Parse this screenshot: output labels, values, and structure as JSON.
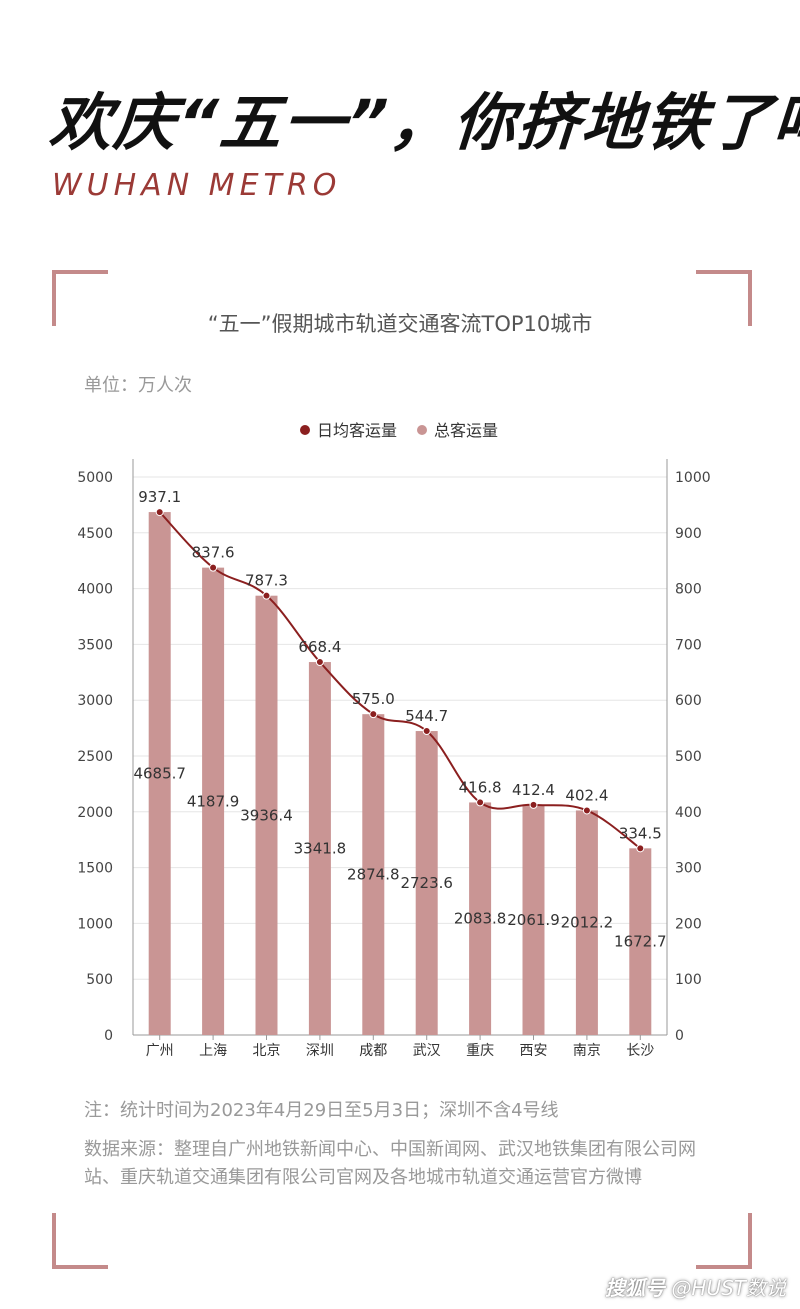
{
  "header": {
    "title": "欢庆“五一”，你挤地铁了吗？",
    "subtitle": "WUHAN METRO"
  },
  "chart_title": "“五一”假期城市轨道交通客流TOP10城市",
  "unit_label": "单位：万人次",
  "note": "注：统计时间为2023年4月29日至5月3日；深圳不含4号线",
  "source": "数据来源：整理自广州地铁新闻中心、中国新闻网、武汉地铁集团有限公司网站、重庆轨道交通集团有限公司官网及各地城市轨道交通运营官方微博",
  "watermark": {
    "platform": "搜狐号",
    "account": "@HUST数说"
  },
  "colors": {
    "bar": "#c99594",
    "line": "#8b1f1f",
    "accent": "#9b3a36",
    "corner": "#c48a8a"
  },
  "chart_data": {
    "type": "bar",
    "categories": [
      "广州",
      "上海",
      "北京",
      "深圳",
      "成都",
      "武汉",
      "重庆",
      "西安",
      "南京",
      "长沙"
    ],
    "series": [
      {
        "name": "总客运量",
        "type": "bar",
        "axis": "left",
        "values": [
          4685.7,
          4187.9,
          3936.4,
          3341.8,
          2874.8,
          2723.6,
          2083.8,
          2061.9,
          2012.2,
          1672.7
        ]
      },
      {
        "name": "日均客运量",
        "type": "line",
        "axis": "right",
        "values": [
          937.1,
          837.6,
          787.3,
          668.4,
          575.0,
          544.7,
          416.8,
          412.4,
          402.4,
          334.5
        ]
      }
    ],
    "value_labels": {
      "bar": [
        "4685.7",
        "4187.9",
        "3936.4",
        "3341.8",
        "2874.8",
        "2723.6",
        "2083.8",
        "2061.9",
        "2012.2",
        "1672.7"
      ],
      "line": [
        "937.1",
        "837.6",
        "787.3",
        "668.4",
        "575.0",
        "544.7",
        "416.8",
        "412.4",
        "402.4",
        "334.5"
      ]
    },
    "y_left": {
      "min": 0,
      "max": 5000,
      "ticks": [
        "0",
        "500",
        "1000",
        "1500",
        "2000",
        "2500",
        "3000",
        "3500",
        "4000",
        "4500",
        "5000"
      ]
    },
    "y_right": {
      "min": 0,
      "max": 1000,
      "ticks": [
        "0",
        "100",
        "200",
        "300",
        "400",
        "500",
        "600",
        "700",
        "800",
        "900",
        "1000"
      ]
    },
    "legend": {
      "position": "top-center",
      "items": [
        "日均客运量",
        "总客运量"
      ]
    },
    "grid": true
  }
}
